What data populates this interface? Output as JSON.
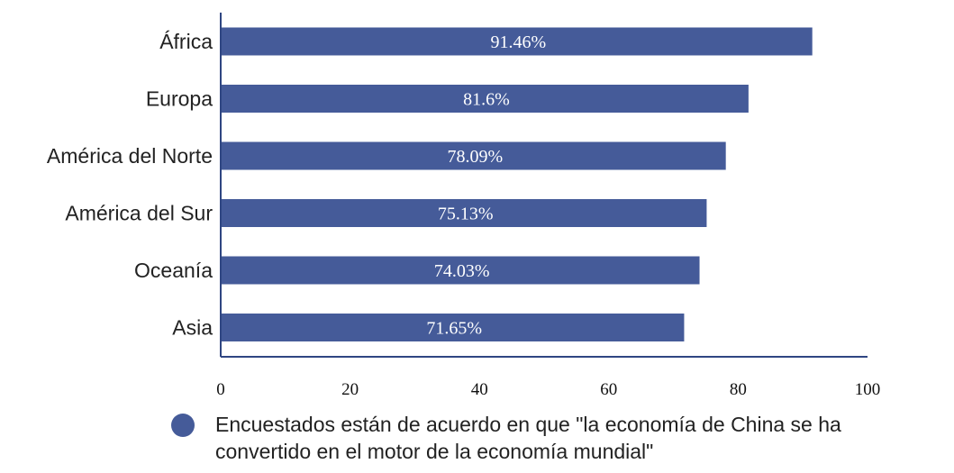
{
  "chart_data": {
    "type": "bar",
    "orientation": "horizontal",
    "categories": [
      "África",
      "Europa",
      "América del Norte",
      "América del Sur",
      "Oceanía",
      "Asia"
    ],
    "values": [
      91.46,
      81.6,
      78.09,
      75.13,
      74.03,
      71.65
    ],
    "data_labels": [
      "91.46%",
      "81.6%",
      "78.09%",
      "75.13%",
      "74.03%",
      "71.65%"
    ],
    "xlim": [
      0,
      100
    ],
    "x_ticks": [
      "0",
      "20",
      "40",
      "60",
      "80",
      "100"
    ],
    "title": "",
    "xlabel": "",
    "ylabel": "",
    "grid": false,
    "legend_position": "bottom",
    "series": [
      {
        "name": "Encuestados están de acuerdo en que \"la economía de China se ha convertido en el motor de la economía mundial\"",
        "values": [
          91.46,
          81.6,
          78.09,
          75.13,
          74.03,
          71.65
        ]
      }
    ],
    "colors": {
      "bar": "#455b99",
      "axis": "#2f4682"
    }
  }
}
